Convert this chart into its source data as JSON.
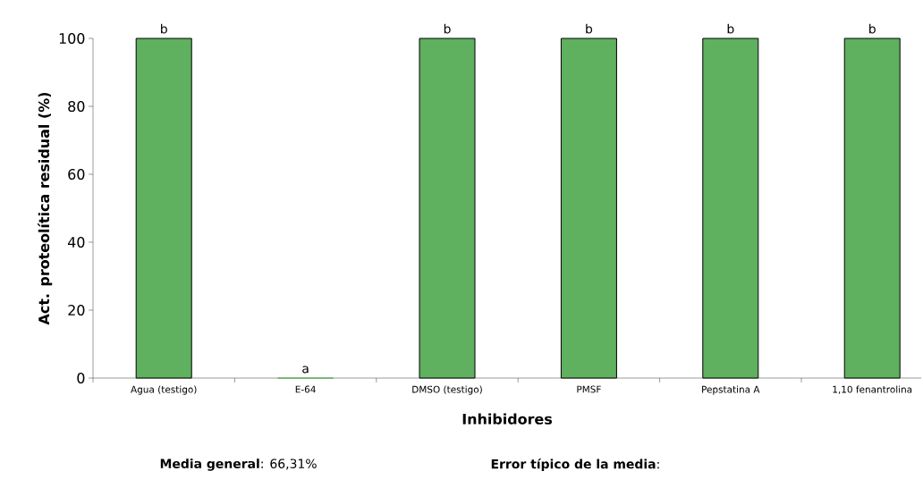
{
  "chart_data": {
    "type": "bar",
    "xlabel": "Inhibidores",
    "ylabel": "Act. proteolítica residual (%)",
    "categories": [
      "Agua (testigo)",
      "E-64",
      "DMSO (testigo)",
      "PMSF",
      "Pepstatina A",
      "1,10 fenantrolina"
    ],
    "values": [
      100,
      0,
      100,
      100,
      100,
      100
    ],
    "value_labels": [
      "b",
      "a",
      "b",
      "b",
      "b",
      "b"
    ],
    "color": "#5fb05f",
    "ylim": [
      0,
      100
    ],
    "yticks": [
      0,
      20,
      40,
      60,
      80,
      100
    ],
    "grid": false,
    "annotations": [
      "**Media general**: 66,31%",
      "**Error típico de la media**:"
    ]
  }
}
